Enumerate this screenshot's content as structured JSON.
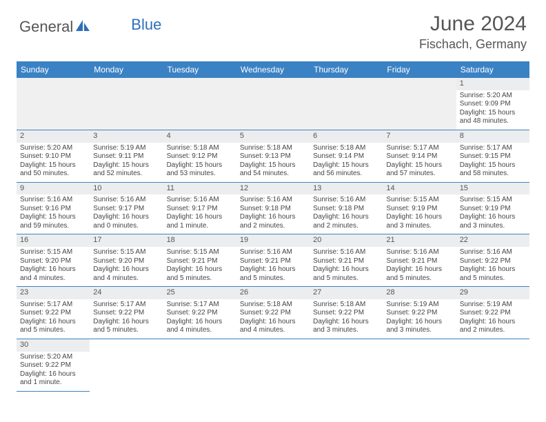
{
  "logo": {
    "part1": "General",
    "part2": "Blue"
  },
  "title": "June 2024",
  "location": "Fischach, Germany",
  "colors": {
    "header_bar": "#3b82c4",
    "header_text": "#ffffff",
    "day_header_bg": "#ecedee",
    "grid_line": "#3b82c4",
    "body_text": "#444444",
    "title_text": "#555555",
    "logo_blue": "#2d6fb8",
    "logo_grey": "#555555"
  },
  "day_headers": [
    "Sunday",
    "Monday",
    "Tuesday",
    "Wednesday",
    "Thursday",
    "Friday",
    "Saturday"
  ],
  "weeks": [
    [
      null,
      null,
      null,
      null,
      null,
      null,
      {
        "n": "1",
        "sr": "Sunrise: 5:20 AM",
        "ss": "Sunset: 9:09 PM",
        "dl": "Daylight: 15 hours and 48 minutes."
      }
    ],
    [
      {
        "n": "2",
        "sr": "Sunrise: 5:20 AM",
        "ss": "Sunset: 9:10 PM",
        "dl": "Daylight: 15 hours and 50 minutes."
      },
      {
        "n": "3",
        "sr": "Sunrise: 5:19 AM",
        "ss": "Sunset: 9:11 PM",
        "dl": "Daylight: 15 hours and 52 minutes."
      },
      {
        "n": "4",
        "sr": "Sunrise: 5:18 AM",
        "ss": "Sunset: 9:12 PM",
        "dl": "Daylight: 15 hours and 53 minutes."
      },
      {
        "n": "5",
        "sr": "Sunrise: 5:18 AM",
        "ss": "Sunset: 9:13 PM",
        "dl": "Daylight: 15 hours and 54 minutes."
      },
      {
        "n": "6",
        "sr": "Sunrise: 5:18 AM",
        "ss": "Sunset: 9:14 PM",
        "dl": "Daylight: 15 hours and 56 minutes."
      },
      {
        "n": "7",
        "sr": "Sunrise: 5:17 AM",
        "ss": "Sunset: 9:14 PM",
        "dl": "Daylight: 15 hours and 57 minutes."
      },
      {
        "n": "8",
        "sr": "Sunrise: 5:17 AM",
        "ss": "Sunset: 9:15 PM",
        "dl": "Daylight: 15 hours and 58 minutes."
      }
    ],
    [
      {
        "n": "9",
        "sr": "Sunrise: 5:16 AM",
        "ss": "Sunset: 9:16 PM",
        "dl": "Daylight: 15 hours and 59 minutes."
      },
      {
        "n": "10",
        "sr": "Sunrise: 5:16 AM",
        "ss": "Sunset: 9:17 PM",
        "dl": "Daylight: 16 hours and 0 minutes."
      },
      {
        "n": "11",
        "sr": "Sunrise: 5:16 AM",
        "ss": "Sunset: 9:17 PM",
        "dl": "Daylight: 16 hours and 1 minute."
      },
      {
        "n": "12",
        "sr": "Sunrise: 5:16 AM",
        "ss": "Sunset: 9:18 PM",
        "dl": "Daylight: 16 hours and 2 minutes."
      },
      {
        "n": "13",
        "sr": "Sunrise: 5:16 AM",
        "ss": "Sunset: 9:18 PM",
        "dl": "Daylight: 16 hours and 2 minutes."
      },
      {
        "n": "14",
        "sr": "Sunrise: 5:15 AM",
        "ss": "Sunset: 9:19 PM",
        "dl": "Daylight: 16 hours and 3 minutes."
      },
      {
        "n": "15",
        "sr": "Sunrise: 5:15 AM",
        "ss": "Sunset: 9:19 PM",
        "dl": "Daylight: 16 hours and 3 minutes."
      }
    ],
    [
      {
        "n": "16",
        "sr": "Sunrise: 5:15 AM",
        "ss": "Sunset: 9:20 PM",
        "dl": "Daylight: 16 hours and 4 minutes."
      },
      {
        "n": "17",
        "sr": "Sunrise: 5:15 AM",
        "ss": "Sunset: 9:20 PM",
        "dl": "Daylight: 16 hours and 4 minutes."
      },
      {
        "n": "18",
        "sr": "Sunrise: 5:15 AM",
        "ss": "Sunset: 9:21 PM",
        "dl": "Daylight: 16 hours and 5 minutes."
      },
      {
        "n": "19",
        "sr": "Sunrise: 5:16 AM",
        "ss": "Sunset: 9:21 PM",
        "dl": "Daylight: 16 hours and 5 minutes."
      },
      {
        "n": "20",
        "sr": "Sunrise: 5:16 AM",
        "ss": "Sunset: 9:21 PM",
        "dl": "Daylight: 16 hours and 5 minutes."
      },
      {
        "n": "21",
        "sr": "Sunrise: 5:16 AM",
        "ss": "Sunset: 9:21 PM",
        "dl": "Daylight: 16 hours and 5 minutes."
      },
      {
        "n": "22",
        "sr": "Sunrise: 5:16 AM",
        "ss": "Sunset: 9:22 PM",
        "dl": "Daylight: 16 hours and 5 minutes."
      }
    ],
    [
      {
        "n": "23",
        "sr": "Sunrise: 5:17 AM",
        "ss": "Sunset: 9:22 PM",
        "dl": "Daylight: 16 hours and 5 minutes."
      },
      {
        "n": "24",
        "sr": "Sunrise: 5:17 AM",
        "ss": "Sunset: 9:22 PM",
        "dl": "Daylight: 16 hours and 5 minutes."
      },
      {
        "n": "25",
        "sr": "Sunrise: 5:17 AM",
        "ss": "Sunset: 9:22 PM",
        "dl": "Daylight: 16 hours and 4 minutes."
      },
      {
        "n": "26",
        "sr": "Sunrise: 5:18 AM",
        "ss": "Sunset: 9:22 PM",
        "dl": "Daylight: 16 hours and 4 minutes."
      },
      {
        "n": "27",
        "sr": "Sunrise: 5:18 AM",
        "ss": "Sunset: 9:22 PM",
        "dl": "Daylight: 16 hours and 3 minutes."
      },
      {
        "n": "28",
        "sr": "Sunrise: 5:19 AM",
        "ss": "Sunset: 9:22 PM",
        "dl": "Daylight: 16 hours and 3 minutes."
      },
      {
        "n": "29",
        "sr": "Sunrise: 5:19 AM",
        "ss": "Sunset: 9:22 PM",
        "dl": "Daylight: 16 hours and 2 minutes."
      }
    ],
    [
      {
        "n": "30",
        "sr": "Sunrise: 5:20 AM",
        "ss": "Sunset: 9:22 PM",
        "dl": "Daylight: 16 hours and 1 minute."
      },
      null,
      null,
      null,
      null,
      null,
      null
    ]
  ]
}
